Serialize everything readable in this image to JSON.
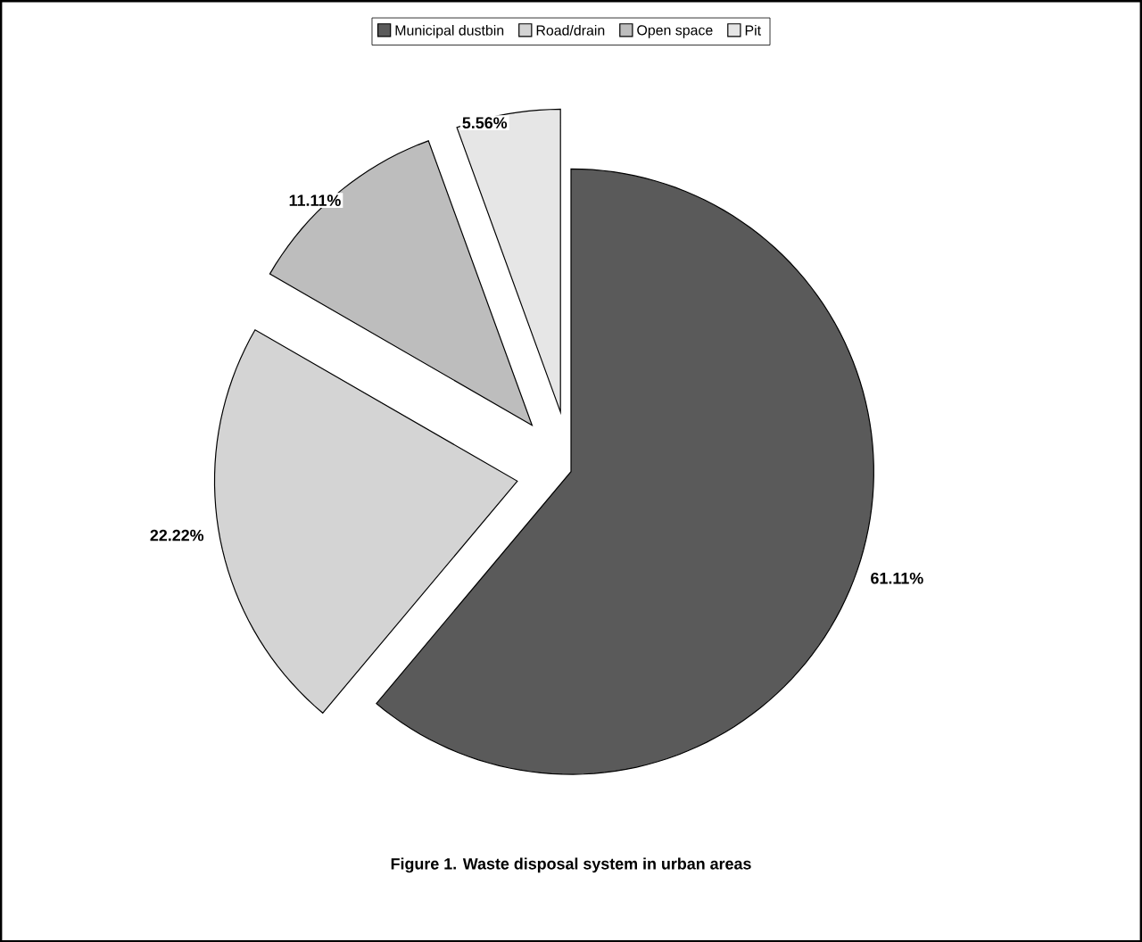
{
  "chart_data": {
    "type": "pie",
    "title": "Figure 1. Waste disposal system in urban areas",
    "categories": [
      "Municipal dustbin",
      "Road/drain",
      "Open space",
      "Pit"
    ],
    "values": [
      61.11,
      22.22,
      11.11,
      5.56
    ],
    "value_labels": [
      "61.11%",
      "22.22%",
      "11.11%",
      "5.56%"
    ],
    "colors": [
      "#5a5a5a",
      "#d4d4d4",
      "#bdbdbd",
      "#e6e6e6"
    ],
    "legend": "top"
  }
}
